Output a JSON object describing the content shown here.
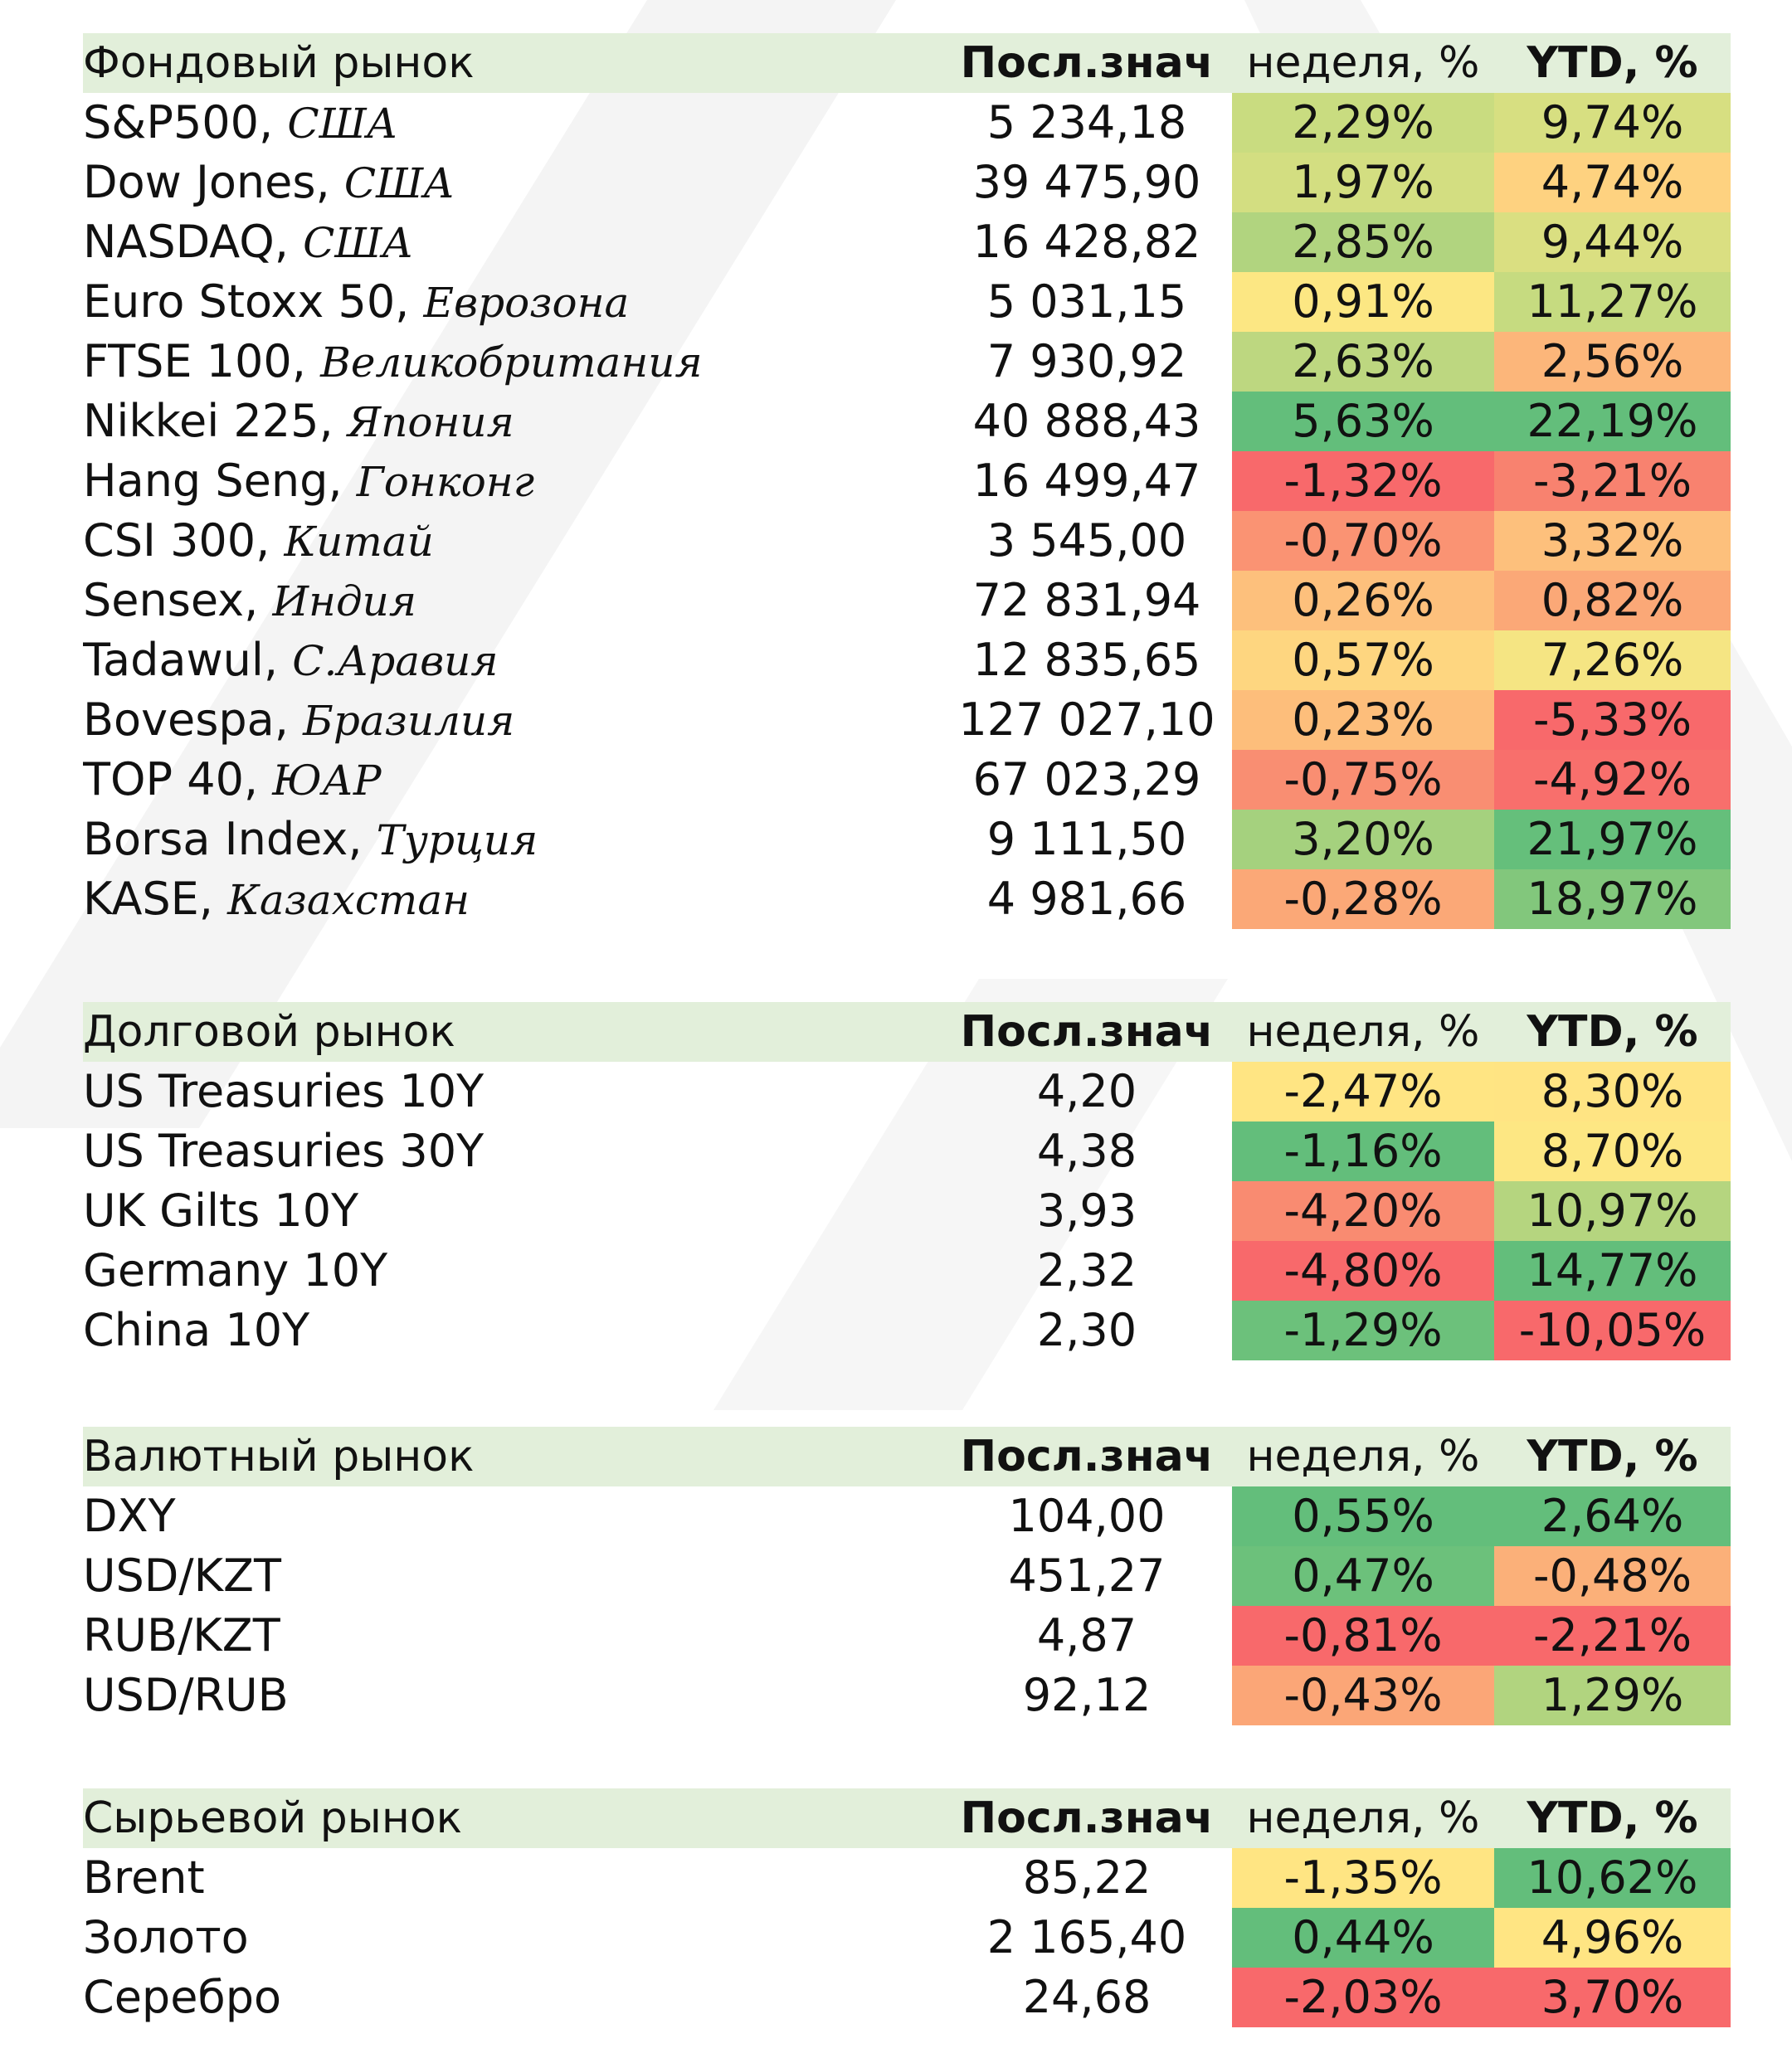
{
  "columns": {
    "last": "Посл.знач",
    "week": "неделя, %",
    "ytd": "YTD, %"
  },
  "colors": {
    "header_bg": "#e2efda",
    "scale_red": "#f8696b",
    "scale_yellow": "#ffeb84",
    "scale_green": "#63be7b"
  },
  "sections": [
    {
      "title": "Фондовый  рынок",
      "rows": [
        {
          "name": "S&P500,",
          "country": "США",
          "last": "5 234,18",
          "week": "2,29%",
          "ytd": "9,74%",
          "week_color": "#c9dc80",
          "ytd_color": "#d7df81"
        },
        {
          "name": "Dow Jones,",
          "country": "США",
          "last": "39 475,90",
          "week": "1,97%",
          "ytd": "4,74%",
          "week_color": "#d3de81",
          "ytd_color": "#fed280"
        },
        {
          "name": "NASDAQ,",
          "country": "США",
          "last": "16 428,82",
          "week": "2,85%",
          "ytd": "9,44%",
          "week_color": "#b1d47f",
          "ytd_color": "#dadf81"
        },
        {
          "name": "Euro Stoxx 50,",
          "country": "Еврозона",
          "last": "5 031,15",
          "week": "0,91%",
          "ytd": "11,27%",
          "week_color": "#fce783",
          "ytd_color": "#c6db80"
        },
        {
          "name": "FTSE 100,",
          "country": "Великобритания",
          "last": "7 930,92",
          "week": "2,63%",
          "ytd": "2,56%",
          "week_color": "#bdd780",
          "ytd_color": "#fcb67a"
        },
        {
          "name": "Nikkei 225,",
          "country": "Япония",
          "last": "40 888,43",
          "week": "5,63%",
          "ytd": "22,19%",
          "week_color": "#63be7b",
          "ytd_color": "#63be7b"
        },
        {
          "name": "Hang Seng,",
          "country": "Гонконг",
          "last": "16 499,47",
          "week": "-1,32%",
          "ytd": "-3,21%",
          "week_color": "#f8696b",
          "ytd_color": "#f8826f"
        },
        {
          "name": "CSI 300,",
          "country": "Китай",
          "last": "3 545,00",
          "week": "-0,70%",
          "ytd": "3,32%",
          "week_color": "#fa9373",
          "ytd_color": "#fdc07c"
        },
        {
          "name": "Sensex,",
          "country": "Индия",
          "last": "72 831,94",
          "week": "0,26%",
          "ytd": "0,82%",
          "week_color": "#fdc07c",
          "ytd_color": "#fba877"
        },
        {
          "name": "Tadawul,",
          "country": "С.Аравия",
          "last": "12 835,65",
          "week": "0,57%",
          "ytd": "7,26%",
          "week_color": "#fed680",
          "ytd_color": "#f5e583"
        },
        {
          "name": "Bovespa,",
          "country": "Бразилия",
          "last": "127 027,10",
          "week": "0,23%",
          "ytd": "-5,33%",
          "week_color": "#fdbe7b",
          "ytd_color": "#f8696b"
        },
        {
          "name": "TOP 40,",
          "country": "ЮАР",
          "last": "67 023,29",
          "week": "-0,75%",
          "ytd": "-4,92%",
          "week_color": "#f98e72",
          "ytd_color": "#f86f6c"
        },
        {
          "name": "Borsa Index,",
          "country": "Турция",
          "last": "9 111,50",
          "week": "3,20%",
          "ytd": "21,97%",
          "week_color": "#a5d17e",
          "ytd_color": "#65bf7b"
        },
        {
          "name": "KASE,",
          "country": "Казахстан",
          "last": "4 981,66",
          "week": "-0,28%",
          "ytd": "18,97%",
          "week_color": "#fba877",
          "ytd_color": "#82c77c"
        }
      ]
    },
    {
      "title": "Долговой  рынок",
      "rows": [
        {
          "name": "US Treasuries  10Y",
          "country": "",
          "last": "4,20",
          "week": "-2,47%",
          "ytd": "8,30%",
          "week_color": "#ffe583",
          "ytd_color": "#ffe483"
        },
        {
          "name": "US Treasuries  30Y",
          "country": "",
          "last": "4,38",
          "week": "-1,16%",
          "ytd": "8,70%",
          "week_color": "#63be7b",
          "ytd_color": "#fde783"
        },
        {
          "name": "UK Gilts  10Y",
          "country": "",
          "last": "3,93",
          "week": "-4,20%",
          "ytd": "10,97%",
          "week_color": "#f98b71",
          "ytd_color": "#b5d57f"
        },
        {
          "name": "Germany  10Y",
          "country": "",
          "last": "2,32",
          "week": "-4,80%",
          "ytd": "14,77%",
          "week_color": "#f8696b",
          "ytd_color": "#63be7b"
        },
        {
          "name": "China  10Y",
          "country": "",
          "last": "2,30",
          "week": "-1,29%",
          "ytd": "-10,05%",
          "week_color": "#6cc17b",
          "ytd_color": "#f8696b"
        }
      ]
    },
    {
      "title": "Валютный  рынок",
      "rows": [
        {
          "name": "DXY",
          "country": "",
          "last": "104,00",
          "week": "0,55%",
          "ytd": "2,64%",
          "week_color": "#63be7b",
          "ytd_color": "#63be7b"
        },
        {
          "name": "USD/KZT",
          "country": "",
          "last": "451,27",
          "week": "0,47%",
          "ytd": "-0,48%",
          "week_color": "#6cc17b",
          "ytd_color": "#fbb079"
        },
        {
          "name": "RUB/KZT",
          "country": "",
          "last": "4,87",
          "week": "-0,81%",
          "ytd": "-2,21%",
          "week_color": "#f8696b",
          "ytd_color": "#f8696b"
        },
        {
          "name": "USD/RUB",
          "country": "",
          "last": "92,12",
          "week": "-0,43%",
          "ytd": "1,29%",
          "week_color": "#fba677",
          "ytd_color": "#b1d47f"
        }
      ]
    },
    {
      "title": "Сырьевой  рынок",
      "rows": [
        {
          "name": "Brent",
          "country": "",
          "last": "85,22",
          "week": "-1,35%",
          "ytd": "10,62%",
          "week_color": "#ffe583",
          "ytd_color": "#63be7b"
        },
        {
          "name": "Золото",
          "country": "",
          "last": "2 165,40",
          "week": "0,44%",
          "ytd": "4,96%",
          "week_color": "#63be7b",
          "ytd_color": "#ffe583"
        },
        {
          "name": "Серебро",
          "country": "",
          "last": "24,68",
          "week": "-2,03%",
          "ytd": "3,70%",
          "week_color": "#f8696b",
          "ytd_color": "#f8696b"
        }
      ]
    }
  ]
}
